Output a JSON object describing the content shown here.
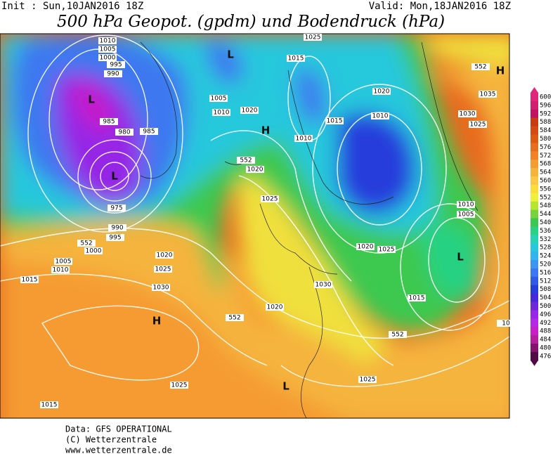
{
  "header": {
    "init": "Init : Sun,10JAN2016 18Z",
    "valid": "Valid: Mon,18JAN2016 18Z",
    "title": "500 hPa Geopot. (gpdm) und Bodendruck (hPa)"
  },
  "colorbar": {
    "labels": [
      600,
      596,
      592,
      588,
      584,
      580,
      576,
      572,
      568,
      564,
      560,
      556,
      552,
      548,
      544,
      540,
      536,
      532,
      528,
      524,
      520,
      516,
      512,
      508,
      504,
      500,
      496,
      492,
      488,
      484,
      480,
      476
    ],
    "colors": [
      "#e0287a",
      "#d21e6e",
      "#c01460",
      "#c83c14",
      "#d24b14",
      "#dc5a14",
      "#e66e1e",
      "#f08228",
      "#f59b32",
      "#f5b43c",
      "#fac846",
      "#fadc3c",
      "#f0f03c",
      "#b4e632",
      "#78d23c",
      "#3cc850",
      "#28d282",
      "#28d2b4",
      "#28c8dc",
      "#32b4f0",
      "#3c96f0",
      "#3c78f0",
      "#325ae6",
      "#283cdc",
      "#4628dc",
      "#6e28dc",
      "#9628e6",
      "#b428e6",
      "#c81ec8",
      "#b41e9b",
      "#82146e",
      "#500a46"
    ]
  },
  "contour_labels": [
    "1010",
    "1005",
    "1000",
    "995",
    "990",
    "985",
    "980",
    "985",
    "975",
    "990",
    "995",
    "552",
    "1000",
    "1005",
    "1010",
    "1015",
    "1020",
    "1025",
    "1030",
    "1025",
    "1015",
    "1025",
    "1015",
    "1005",
    "1010",
    "1020",
    "1010",
    "1015",
    "1020",
    "1010",
    "552",
    "1020",
    "1025",
    "1030",
    "1020",
    "552",
    "1020",
    "1025",
    "1010",
    "1005",
    "1015",
    "552",
    "1025",
    "552",
    "1035",
    "1030",
    "1025",
    "10"
  ],
  "pressure_centers": [
    "L",
    "L",
    "L",
    "H",
    "H",
    "H",
    "L",
    "L"
  ],
  "footer": {
    "lines": [
      "Data: GFS OPERATIONAL",
      "(C) Wetterzentrale",
      "www.wetterzentrale.de"
    ]
  }
}
